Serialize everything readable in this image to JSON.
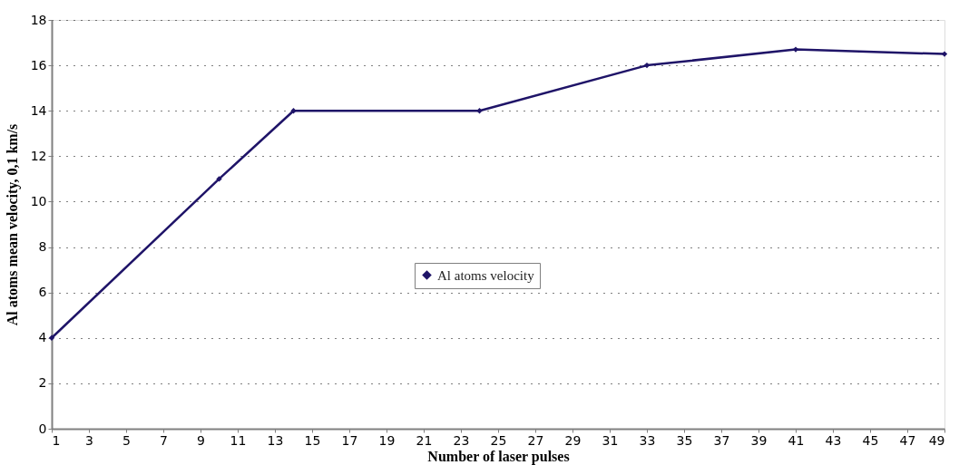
{
  "chart_data": {
    "type": "line",
    "xlabel": "Number of laser pulses",
    "ylabel": "Al atoms mean velocity, 0,1 km/s",
    "x": [
      1,
      10,
      14,
      24,
      33,
      41,
      49
    ],
    "series": [
      {
        "name": "Al atoms velocity",
        "color": "#1f1468",
        "values": [
          4,
          11,
          14,
          14,
          16,
          16.7,
          16.5
        ]
      }
    ],
    "xlim": [
      1,
      49
    ],
    "xticks": [
      1,
      3,
      5,
      7,
      9,
      11,
      13,
      15,
      17,
      19,
      21,
      23,
      25,
      27,
      29,
      31,
      33,
      35,
      37,
      39,
      41,
      43,
      45,
      47,
      49
    ],
    "ylim": [
      0,
      18
    ],
    "yticks": [
      0,
      2,
      4,
      6,
      8,
      10,
      12,
      14,
      16,
      18
    ],
    "grid": "y",
    "legend": "center",
    "marker": "diamond",
    "line_style": "solid"
  }
}
